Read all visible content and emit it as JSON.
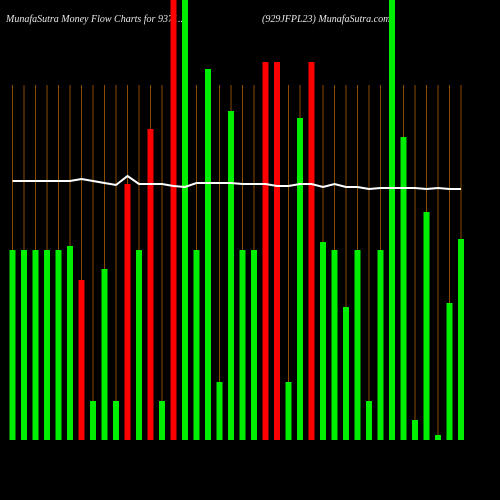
{
  "chart_data": {
    "type": "bar",
    "title": "MunafaSutra  Money Flow  Charts for 9371...",
    "subtitle": "(929JFPL23) MunafaSutra.com",
    "categories": [
      null,
      null,
      null,
      null,
      null,
      null,
      null,
      null,
      null,
      null,
      null,
      null,
      null,
      null,
      null,
      null,
      null,
      null,
      null,
      null,
      null,
      null,
      null,
      null,
      null,
      null,
      null,
      null,
      null,
      null,
      null,
      null,
      null,
      null,
      null,
      null,
      null,
      null,
      null,
      null
    ],
    "values": [
      190,
      190,
      190,
      190,
      190,
      194,
      160,
      39,
      171,
      39,
      256,
      190,
      311,
      39,
      440,
      440,
      190,
      371,
      58,
      329,
      190,
      190,
      378,
      378,
      58,
      322,
      378,
      198,
      190,
      133,
      190,
      39,
      190,
      440,
      303,
      20,
      228,
      5,
      137,
      201
    ],
    "bar_colors": [
      "#00ee00",
      "#00ee00",
      "#00ee00",
      "#00ee00",
      "#00ee00",
      "#00ee00",
      "#ff0000",
      "#00ee00",
      "#00ee00",
      "#00ee00",
      "#ff0000",
      "#00ee00",
      "#ff0000",
      "#00ee00",
      "#ff0000",
      "#00ee00",
      "#00ee00",
      "#00ee00",
      "#00ee00",
      "#00ee00",
      "#00ee00",
      "#00ee00",
      "#ff0000",
      "#ff0000",
      "#00ee00",
      "#00ee00",
      "#ff0000",
      "#00ee00",
      "#00ee00",
      "#00ee00",
      "#00ee00",
      "#00ee00",
      "#00ee00",
      "#00ee00",
      "#00ee00",
      "#00ee00",
      "#00ee00",
      "#00ee00",
      "#00ee00",
      "#00ee00"
    ],
    "line": {
      "color": "#ffffff",
      "values": [
        259,
        259,
        259,
        259,
        259,
        259,
        261,
        259,
        257,
        255,
        264,
        256,
        256,
        256,
        254,
        253,
        257,
        257,
        257,
        257,
        256,
        256,
        256,
        254,
        254,
        256,
        256,
        253,
        256,
        253,
        253,
        251,
        252,
        252,
        252,
        252,
        251,
        252,
        251,
        251
      ]
    },
    "ylim": [
      0,
      440
    ],
    "gridline_color": "#8a4a00"
  }
}
